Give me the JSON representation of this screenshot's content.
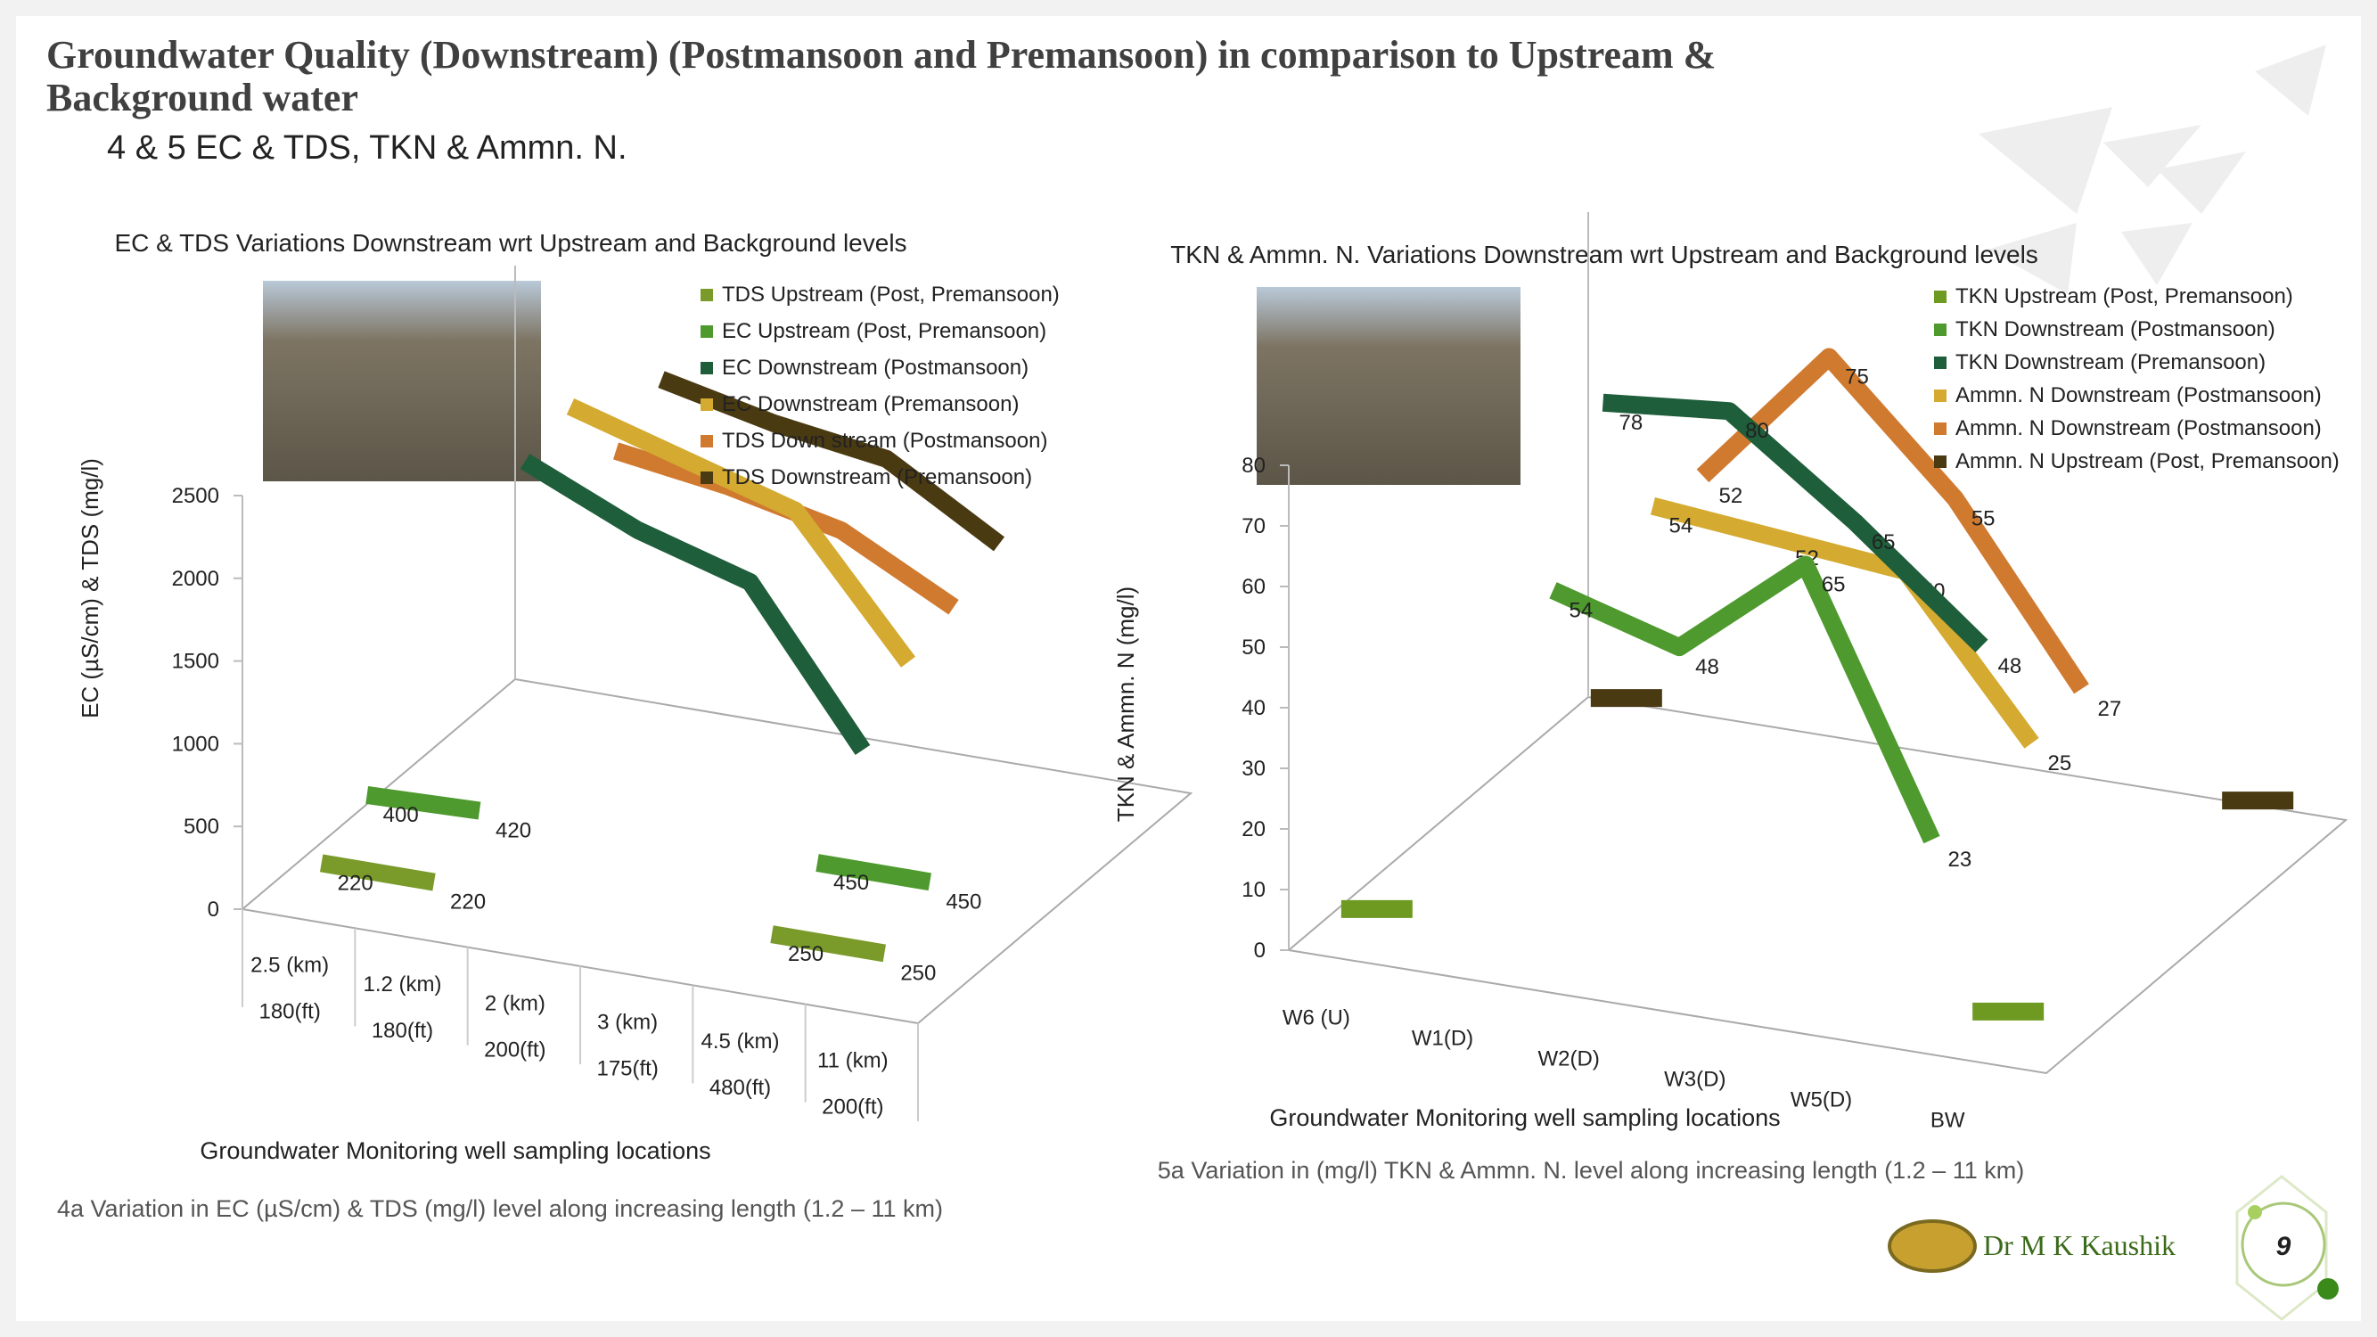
{
  "header": {
    "title": "Groundwater Quality (Downstream) (Postmansoon and Premansoon) in comparison to Upstream &  Background water",
    "subtitle": "4 & 5  EC & TDS, TKN & Ammn. N."
  },
  "chart_data": [
    {
      "type": "line3d",
      "title": "EC & TDS Variations Downstream wrt Upstream and Background levels",
      "y_label": "EC (µS/cm) & TDS (mg/l)",
      "x_label": "Groundwater Monitoring well sampling locations",
      "caption": "4a   Variation in EC (µS/cm) & TDS (mg/l)  level along increasing length (1.2 – 11 km)",
      "categories": [
        "2.5 (km)",
        "1.2 (km)",
        "2 (km)",
        "3 (km)",
        "4.5 (km)",
        "11 (km)"
      ],
      "category_sublabels": [
        "180(ft)",
        "180(ft)",
        "200(ft)",
        "175(ft)",
        "480(ft)",
        "200(ft)"
      ],
      "ylim": [
        0,
        2500
      ],
      "yticks": [
        0,
        500,
        1000,
        1500,
        2000,
        2500
      ],
      "series": [
        {
          "name": "TDS Upstream (Post, Premansoon)",
          "color": "#7a9a2a",
          "values": [
            220,
            220,
            null,
            null,
            250,
            250
          ]
        },
        {
          "name": "EC Upstream (Post, Premansoon)",
          "color": "#4e9a2e",
          "values": [
            400,
            420,
            null,
            null,
            450,
            450
          ]
        },
        {
          "name": "EC Downstream (Postmansoon)",
          "color": "#1e5e3a",
          "values": [
            null,
            2300,
            2000,
            1800,
            900,
            null
          ]
        },
        {
          "name": "EC Downstream (Premansoon)",
          "color": "#d4aa30",
          "values": [
            null,
            2400,
            2200,
            2000,
            1200,
            null
          ]
        },
        {
          "name": "TDS Down stream (Postmansoon)",
          "color": "#d07a30",
          "values": [
            null,
            1900,
            1800,
            1650,
            1300,
            null
          ]
        },
        {
          "name": "TDS Downstream (Premansoon)",
          "color": "#4a3a12",
          "values": [
            null,
            2100,
            1950,
            1850,
            1450,
            null
          ]
        }
      ],
      "labeled_series": [
        0,
        1
      ]
    },
    {
      "type": "line3d",
      "title": "TKN & Ammn. N. Variations Downstream wrt Upstream and Background levels",
      "y_label": "TKN & Ammn. N  (mg/l)",
      "x_label": "Groundwater Monitoring well sampling locations",
      "caption": "5a   Variation in  (mg/l) TKN & Ammn. N.  level along increasing length (1.2 – 11 km)",
      "categories": [
        "W6 (U)",
        "W1(D)",
        "W2(D)",
        "W3(D)",
        "W5(D)",
        "BW"
      ],
      "ylim": [
        0,
        80
      ],
      "yticks": [
        0,
        10,
        20,
        30,
        40,
        50,
        60,
        70,
        80
      ],
      "series": [
        {
          "name": "TKN Upstream (Post, Premansoon)",
          "color": "#6e9a22",
          "values": [
            5,
            null,
            null,
            null,
            null,
            5
          ]
        },
        {
          "name": "TKN Downstream (Postmansoon)",
          "color": "#4e9a2e",
          "values": [
            null,
            54,
            48,
            65,
            23,
            null
          ]
        },
        {
          "name": "TKN Downstream (Premansoon)",
          "color": "#1e5e3a",
          "values": [
            null,
            78,
            80,
            65,
            48,
            null
          ]
        },
        {
          "name": "Ammn. N Downstream (Postmansoon)",
          "color": "#d4aa30",
          "values": [
            null,
            54,
            52,
            50,
            25,
            null
          ]
        },
        {
          "name": "Ammn. N Downstream (Postmansoon)",
          "color": "#d07a30",
          "values": [
            null,
            52,
            75,
            55,
            27,
            null
          ]
        },
        {
          "name": "Ammn. N Upstream (Post, Premansoon)",
          "color": "#4a3a12",
          "values": [
            5,
            null,
            null,
            null,
            null,
            5
          ]
        }
      ],
      "labeled_series": [
        1,
        2,
        3,
        4
      ]
    }
  ],
  "footer": {
    "author": "Dr M K Kaushik",
    "page": "9"
  }
}
